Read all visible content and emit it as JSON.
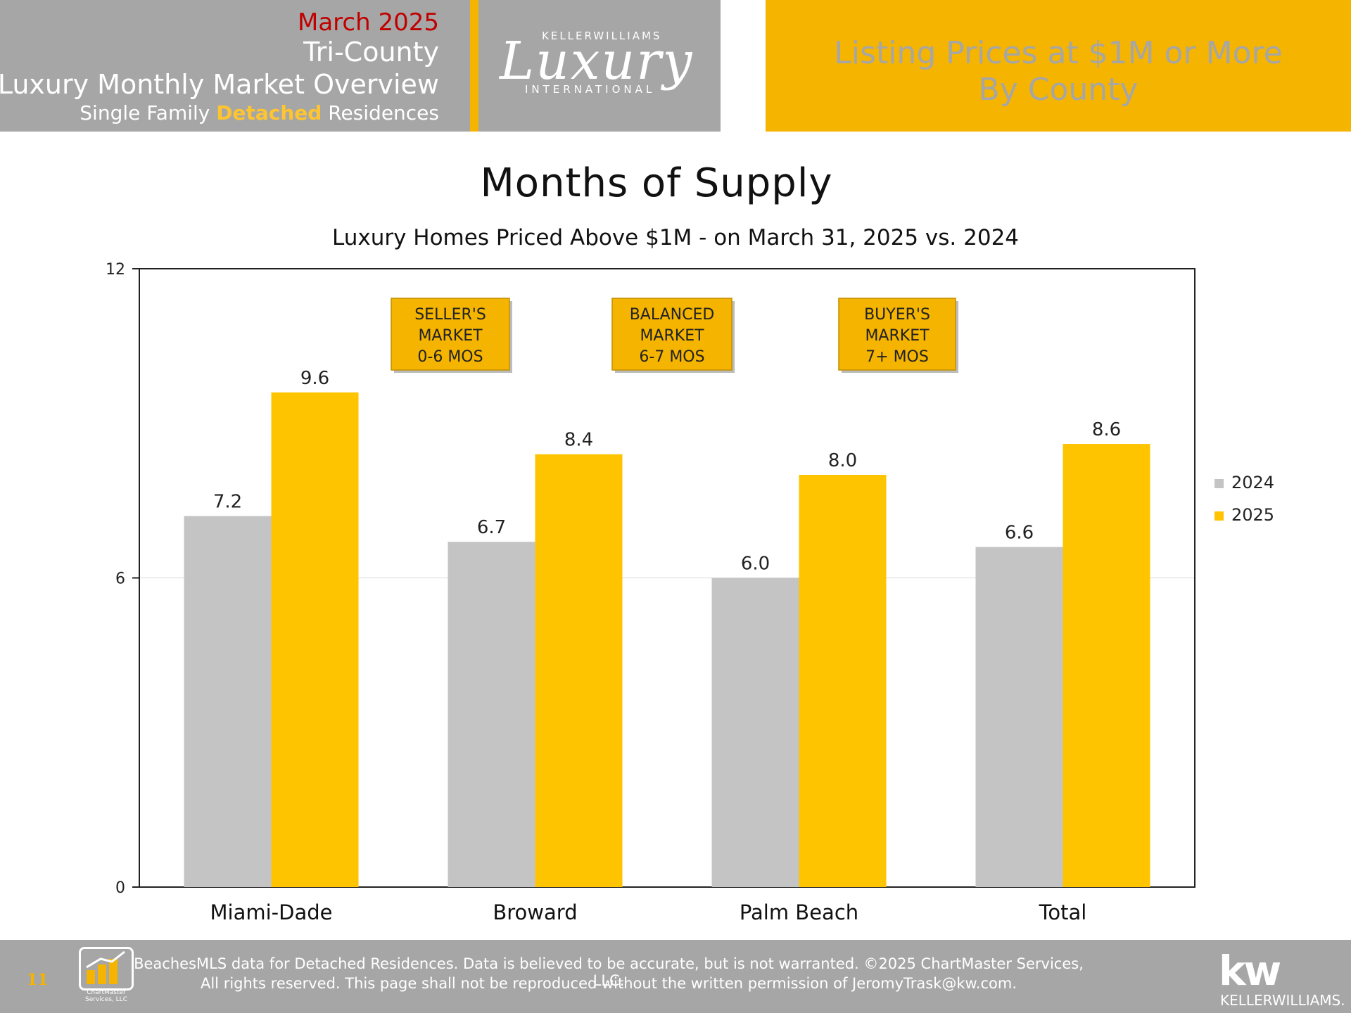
{
  "header": {
    "date": "March 2025",
    "region": "Tri-County",
    "report": "Luxury Monthly Market Overview",
    "subtitle_pre": "Single Family",
    "subtitle_highlight": "Detached",
    "subtitle_post": "Residences",
    "logo_top": "KELLERWILLIAMS",
    "logo_script": "Luxury",
    "logo_bottom": "INTERNATIONAL",
    "right_line1": "Listing Prices at $1M or More",
    "right_line2": "By County"
  },
  "chart_data": {
    "type": "bar",
    "title": "Months of Supply",
    "subtitle": "Luxury Homes Priced Above $1M - on March 31,  2025 vs. 2024",
    "categories": [
      "Miami-Dade",
      "Broward",
      "Palm Beach",
      "Total"
    ],
    "series": [
      {
        "name": "2024",
        "values": [
          7.2,
          6.7,
          6.0,
          6.6
        ],
        "color": "#c4c4c4"
      },
      {
        "name": "2025",
        "values": [
          9.6,
          8.4,
          8.0,
          8.6
        ],
        "color": "#ffc400"
      }
    ],
    "value_labels": [
      [
        "7.2",
        "6.7",
        "6.0",
        "6.6"
      ],
      [
        "9.6",
        "8.4",
        "8.0",
        "8.6"
      ]
    ],
    "ylim": [
      0,
      12
    ],
    "yticks": [
      0,
      6,
      12
    ],
    "ytick_labels": [
      "0",
      "6",
      "12"
    ],
    "grid": true,
    "legend_position": "right",
    "annotations": [
      {
        "lines": [
          "SELLER'S",
          "MARKET",
          "0-6 MOS"
        ]
      },
      {
        "lines": [
          "BALANCED",
          "MARKET",
          "6-7 MOS"
        ]
      },
      {
        "lines": [
          "BUYER'S",
          "MARKET",
          "7+ MOS"
        ]
      }
    ],
    "annotation_fill": "#f4b400"
  },
  "footer": {
    "page_number": "11",
    "chartmaster_name": "ChartMaster Services, LLC",
    "line1": "BeachesMLS data for Detached Residences.  Data is believed to be accurate, but is not warranted.   ©2025  ChartMaster Services, LLC.",
    "line2": "All rights reserved. This page shall not be reproduced without the written permission of JeromyTrask@kw.com.",
    "kw_mark": "kw",
    "kw_name": "KELLERWILLIAMS."
  }
}
